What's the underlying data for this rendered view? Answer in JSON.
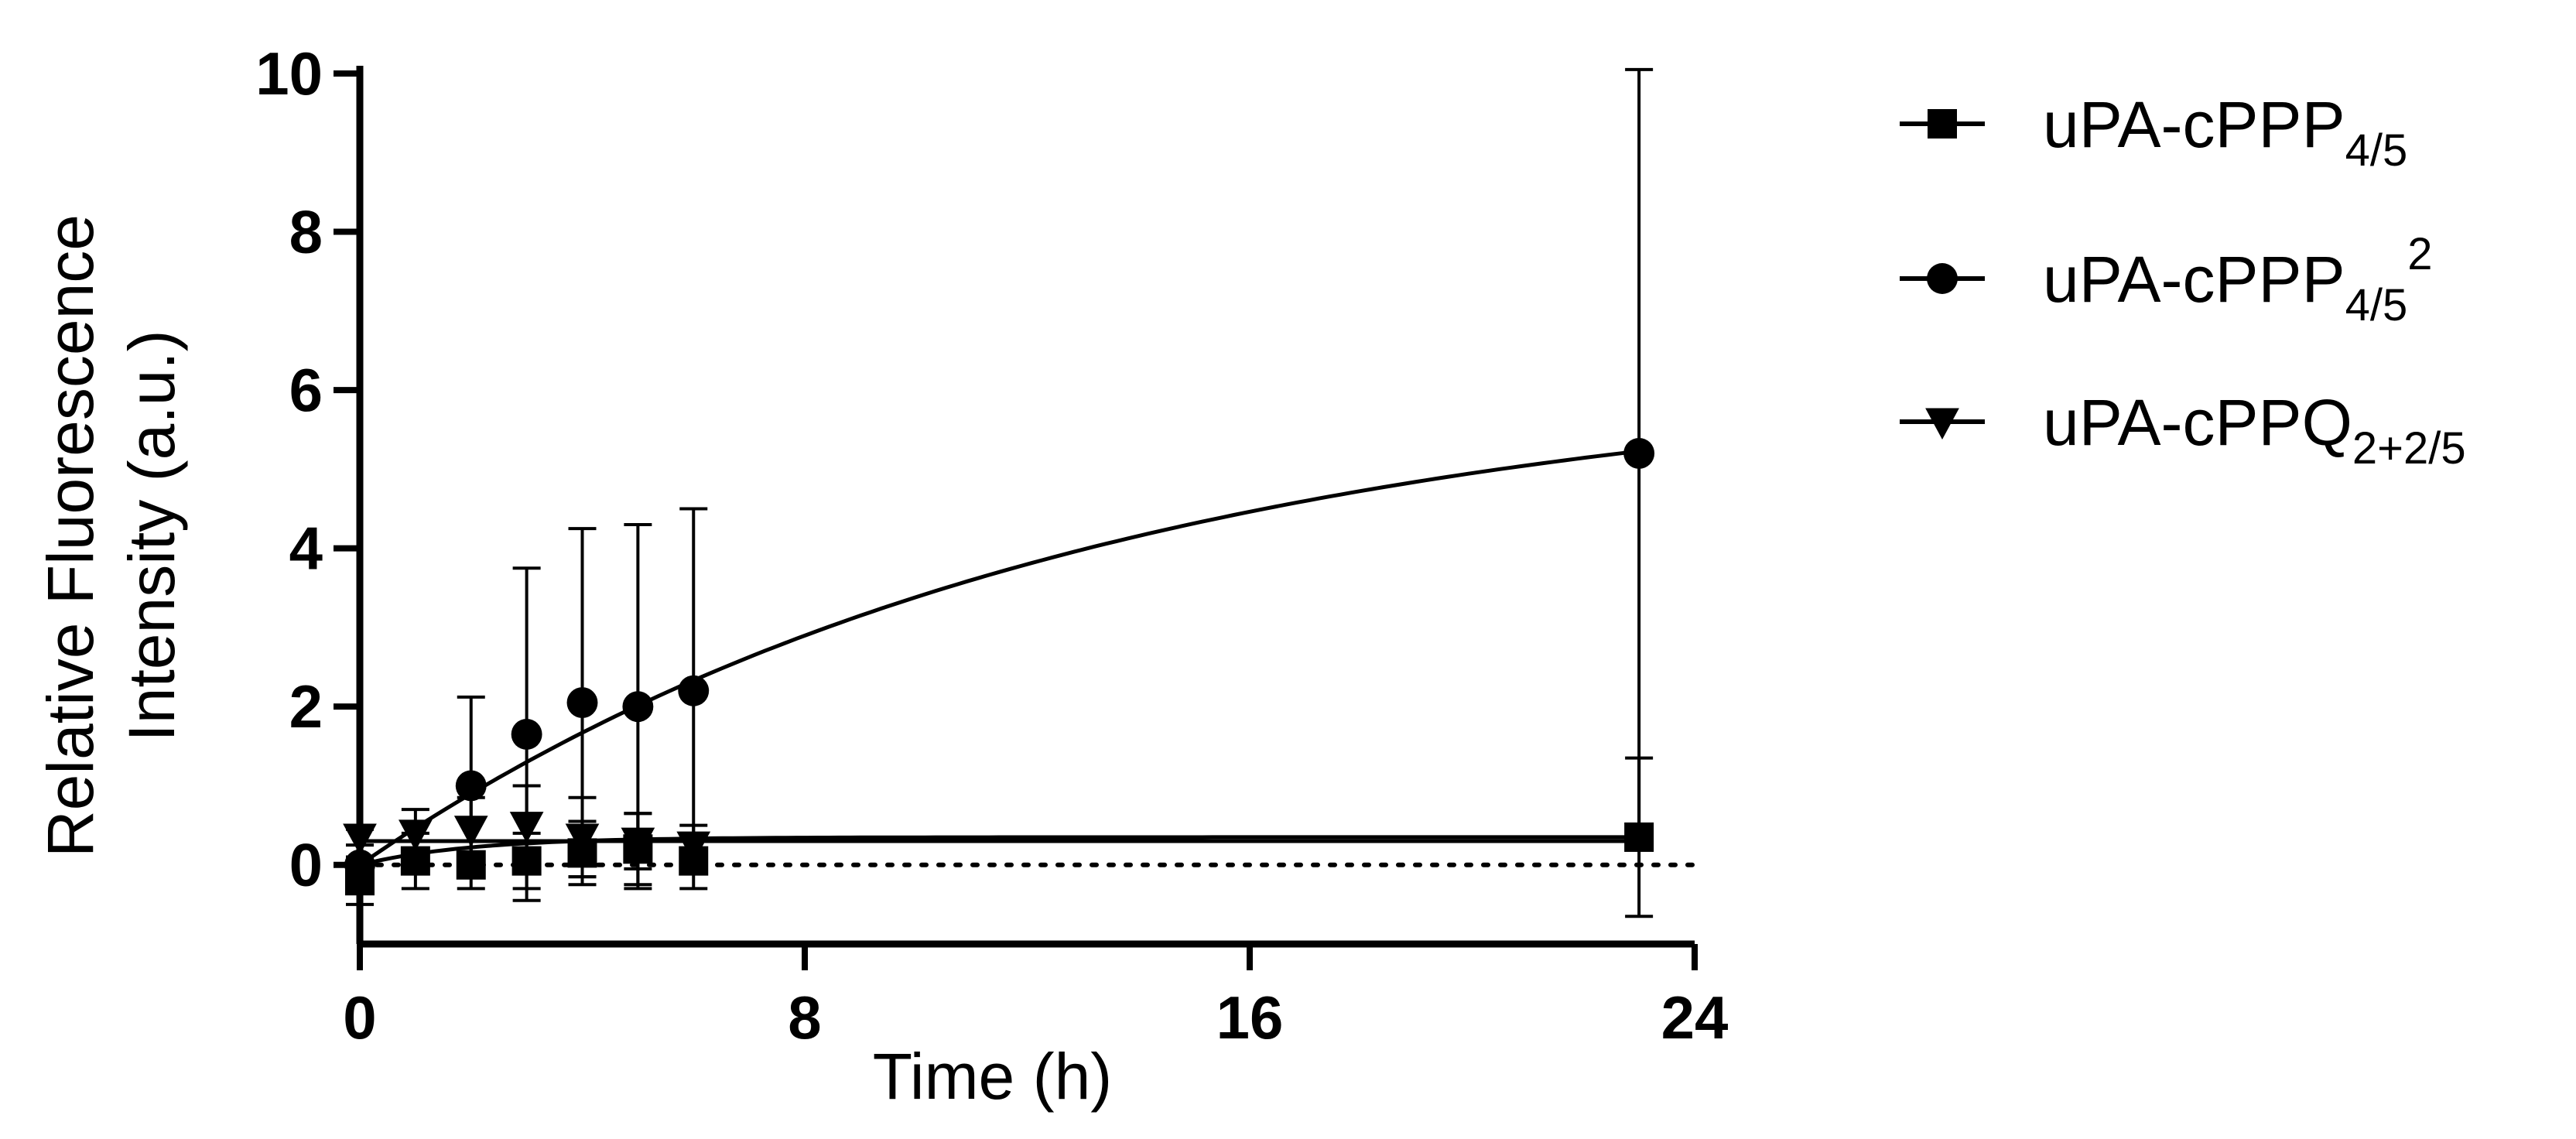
{
  "chart_data": {
    "type": "scatter",
    "title": "",
    "xlabel": "Time (h)",
    "ylabel_lines": [
      "Relative Fluorescence",
      "Intensity (a.u.)"
    ],
    "xlim": [
      0,
      24
    ],
    "ylim": [
      -1,
      10
    ],
    "x_ticks": [
      0,
      8,
      16,
      24
    ],
    "y_ticks": [
      0,
      2,
      4,
      6,
      8,
      10
    ],
    "grid": false,
    "legend_position": "right",
    "reference_line": {
      "y": 0,
      "style": "dotted"
    },
    "series": [
      {
        "name": "uPA-cPPP",
        "name_subscript": "4/5",
        "name_superscript": "",
        "marker": "square",
        "x": [
          0,
          1,
          2,
          3,
          4,
          5,
          6,
          23
        ],
        "y": [
          -0.2,
          0.05,
          0.0,
          0.05,
          0.15,
          0.2,
          0.05,
          0.35
        ],
        "err": [
          0.3,
          0.35,
          0.3,
          0.35,
          0.4,
          0.45,
          0.35,
          1.0
        ],
        "fit": {
          "type": "plateau",
          "y0": 0.0,
          "plateau": 0.35,
          "k": 0.5
        }
      },
      {
        "name": "uPA-cPPP",
        "name_subscript": "4/5",
        "name_superscript": "2",
        "marker": "circle",
        "x": [
          0,
          2,
          3,
          4,
          5,
          6,
          23
        ],
        "y": [
          0.0,
          1.0,
          1.65,
          2.05,
          2.0,
          2.2,
          5.2
        ],
        "err": [
          0.1,
          1.12,
          2.1,
          2.2,
          2.3,
          2.3,
          4.85
        ],
        "fit": {
          "type": "plateau",
          "y0": 0.0,
          "plateau": 6.3,
          "k": 0.077
        }
      },
      {
        "name": "uPA-cPPQ",
        "name_subscript": "2+2/5",
        "name_superscript": "",
        "marker": "triangle-down",
        "x": [
          0,
          1,
          2,
          3,
          4,
          5,
          6
        ],
        "y": [
          0.35,
          0.4,
          0.45,
          0.5,
          0.35,
          0.3,
          0.25
        ],
        "err": [
          0.1,
          0.3,
          0.4,
          0.5,
          0.5,
          0.35,
          0.25
        ],
        "fit": {
          "type": "flat",
          "y": 0.3,
          "x_range": [
            0,
            23
          ]
        }
      }
    ]
  }
}
